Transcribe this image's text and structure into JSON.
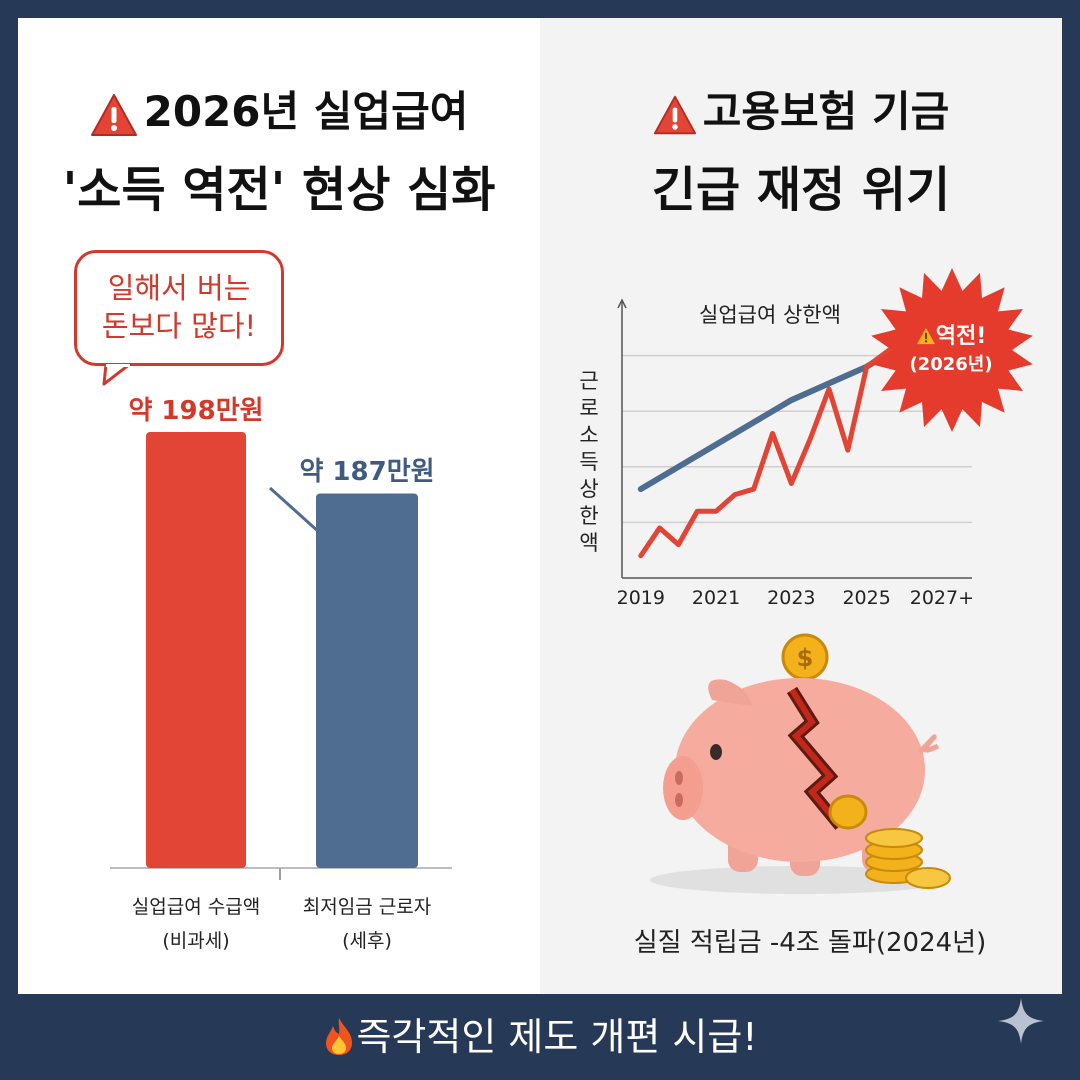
{
  "left_panel": {
    "title_line1": "2026년  실업급여",
    "title_line2": "'소득 역전' 현상 심화",
    "bubble_line1": "일해서 버는",
    "bubble_line2": "돈보다 많다!"
  },
  "right_panel": {
    "title_line1": "고용보험 기금",
    "title_line2": "긴급 재정 위기",
    "burst_line1": "역전!",
    "burst_line2": "(2026년)",
    "savings_label": "실질 적립금 -4조 돌파(2024년)"
  },
  "footer": {
    "text": "즉각적인 제도 개편 시급!"
  },
  "colors": {
    "red": "#e24535",
    "blue": "#4f6c91",
    "navy": "#263956"
  },
  "chart_data": [
    {
      "type": "bar",
      "categories": [
        "실업급여 수급액",
        "최저임금 근로자"
      ],
      "category_sublabels": [
        "(비과세)",
        "(세후)"
      ],
      "values": [
        198,
        187
      ],
      "value_labels": [
        "약 198만원",
        "약 187만원"
      ],
      "unit": "만원",
      "ylim": [
        0,
        220
      ],
      "colors": [
        "#e24535",
        "#4f6c91"
      ]
    },
    {
      "type": "line",
      "title": "실업급여  상한액",
      "ylabel": "근로소득 상한액",
      "x_ticks": [
        "2019",
        "2021",
        "2023",
        "2025",
        "2027+"
      ],
      "grid": true,
      "series": [
        {
          "color": "#4f6c91",
          "x": [
            2019,
            2020,
            2021,
            2022,
            2023,
            2024,
            2025,
            2025.6
          ],
          "y": [
            1.6,
            2.0,
            2.4,
            2.8,
            3.2,
            3.5,
            3.8,
            4.05
          ]
        },
        {
          "color": "#e24535",
          "x": [
            2019,
            2019.5,
            2020,
            2020.5,
            2021,
            2021.5,
            2022,
            2022.5,
            2023,
            2023.5,
            2024,
            2024.5,
            2025,
            2025.6
          ],
          "y": [
            0.4,
            0.9,
            0.6,
            1.2,
            1.2,
            1.5,
            1.6,
            2.6,
            1.7,
            2.5,
            3.4,
            2.3,
            3.8,
            4.1
          ]
        }
      ]
    }
  ]
}
